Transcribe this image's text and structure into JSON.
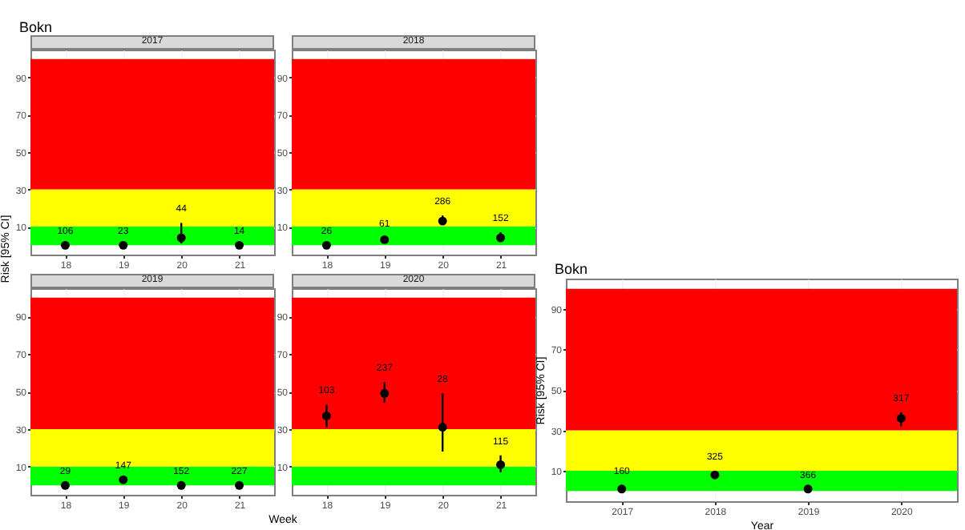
{
  "chart_data": [
    {
      "type": "scatter",
      "title": "Bokn",
      "subtitle": "2017",
      "ylabel": "Risk [95% CI]",
      "categories": [
        "18",
        "19",
        "20",
        "21"
      ],
      "values": [
        0,
        0,
        4,
        0
      ],
      "errors": [
        null,
        null,
        [
          1,
          12
        ],
        null
      ],
      "annotations": [
        "106",
        "23",
        "44",
        "14"
      ],
      "color": "#000000",
      "ylim": [
        -5,
        105
      ],
      "yticks": [
        10,
        30,
        50,
        70,
        90
      ],
      "grid": true,
      "marker": "circle",
      "bands": [
        {
          "axis": "y",
          "from": 0,
          "to": 10,
          "color": "#00ff00"
        },
        {
          "axis": "y",
          "from": 10,
          "to": 30,
          "color": "#ffff00"
        },
        {
          "axis": "y",
          "from": 30,
          "to": 100,
          "color": "#ff0000"
        }
      ]
    },
    {
      "type": "scatter",
      "subtitle": "2018",
      "categories": [
        "18",
        "19",
        "20",
        "21"
      ],
      "values": [
        0,
        3,
        13,
        4
      ],
      "errors": [
        null,
        [
          1,
          4
        ],
        [
          11,
          16
        ],
        [
          2,
          7
        ]
      ],
      "annotations": [
        "26",
        "61",
        "286",
        "152"
      ],
      "color": "#000000",
      "ylim": [
        -5,
        105
      ],
      "yticks": [
        10,
        30,
        50,
        70,
        90
      ],
      "grid": true,
      "marker": "circle",
      "bands": [
        {
          "axis": "y",
          "from": 0,
          "to": 10,
          "color": "#00ff00"
        },
        {
          "axis": "y",
          "from": 10,
          "to": 30,
          "color": "#ffff00"
        },
        {
          "axis": "y",
          "from": 30,
          "to": 100,
          "color": "#ff0000"
        }
      ]
    },
    {
      "type": "scatter",
      "subtitle": "2019",
      "xlabel": "Week",
      "categories": [
        "18",
        "19",
        "20",
        "21"
      ],
      "values": [
        0,
        3,
        0,
        0
      ],
      "annotations": [
        "29",
        "147",
        "152",
        "227"
      ],
      "color": "#000000",
      "ylim": [
        -5,
        105
      ],
      "yticks": [
        10,
        30,
        50,
        70,
        90
      ],
      "grid": true,
      "marker": "circle",
      "bands": [
        {
          "axis": "y",
          "from": 0,
          "to": 10,
          "color": "#00ff00"
        },
        {
          "axis": "y",
          "from": 10,
          "to": 30,
          "color": "#ffff00"
        },
        {
          "axis": "y",
          "from": 30,
          "to": 100,
          "color": "#ff0000"
        }
      ]
    },
    {
      "type": "scatter",
      "subtitle": "2020",
      "categories": [
        "18",
        "19",
        "20",
        "21"
      ],
      "values": [
        37,
        49,
        31,
        11
      ],
      "errors": [
        [
          31,
          43
        ],
        [
          44,
          55
        ],
        [
          18,
          49
        ],
        [
          7,
          16
        ]
      ],
      "annotations": [
        "103",
        "237",
        "28",
        "115"
      ],
      "color": "#000000",
      "ylim": [
        -5,
        105
      ],
      "yticks": [
        10,
        30,
        50,
        70,
        90
      ],
      "grid": true,
      "marker": "circle",
      "bands": [
        {
          "axis": "y",
          "from": 0,
          "to": 10,
          "color": "#00ff00"
        },
        {
          "axis": "y",
          "from": 10,
          "to": 30,
          "color": "#ffff00"
        },
        {
          "axis": "y",
          "from": 30,
          "to": 100,
          "color": "#ff0000"
        }
      ]
    },
    {
      "type": "scatter",
      "title": "Bokn",
      "xlabel": "Year",
      "ylabel": "Risk [95% CI]",
      "categories": [
        "2017",
        "2018",
        "2019",
        "2020"
      ],
      "values": [
        1,
        8,
        1,
        36
      ],
      "errors": [
        [
          0,
          3
        ],
        [
          6,
          10
        ],
        null,
        [
          32,
          39
        ]
      ],
      "annotations": [
        "160",
        "325",
        "366",
        "317"
      ],
      "color": "#000000",
      "ylim": [
        -5,
        105
      ],
      "yticks": [
        10,
        30,
        50,
        70,
        90
      ],
      "grid": true,
      "marker": "circle",
      "bands": [
        {
          "axis": "y",
          "from": 0,
          "to": 10,
          "color": "#00ff00"
        },
        {
          "axis": "y",
          "from": 10,
          "to": 30,
          "color": "#ffff00"
        },
        {
          "axis": "y",
          "from": 30,
          "to": 100,
          "color": "#ff0000"
        }
      ]
    }
  ]
}
